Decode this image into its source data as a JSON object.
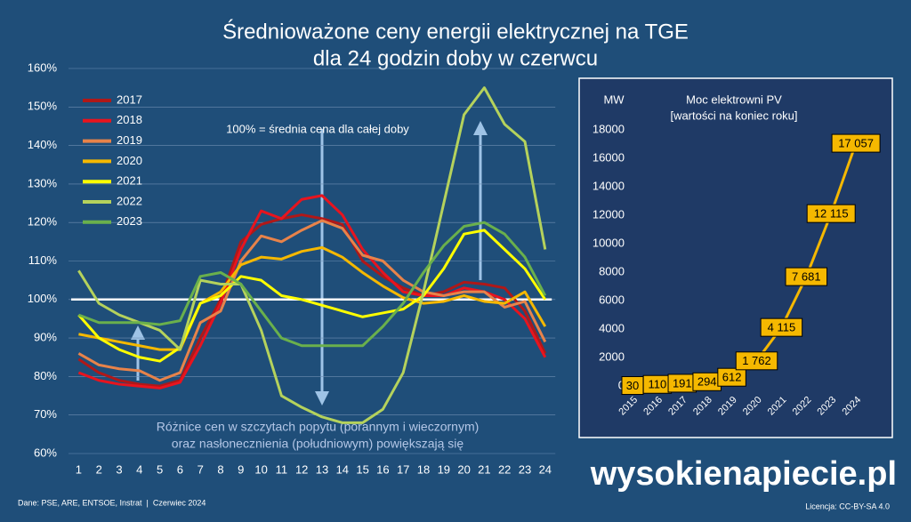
{
  "chart_data": [
    {
      "type": "line",
      "title": "Średnioważone ceny energii elektrycznej na TGE",
      "subtitle": "dla 24 godzin doby w czerwcu",
      "categories": [
        "1",
        "2",
        "3",
        "4",
        "5",
        "6",
        "7",
        "8",
        "9",
        "10",
        "11",
        "12",
        "13",
        "14",
        "15",
        "16",
        "17",
        "18",
        "19",
        "20",
        "21",
        "22",
        "23",
        "24"
      ],
      "series": [
        {
          "name": "2017",
          "color": "#b01818",
          "values": [
            84.5,
            81,
            79,
            78,
            77.5,
            79,
            90,
            100,
            115,
            119.5,
            121,
            122,
            121,
            119.5,
            110,
            106,
            103,
            101,
            102,
            104.5,
            104,
            103,
            97,
            86
          ]
        },
        {
          "name": "2018",
          "color": "#e8141e",
          "values": [
            81,
            79,
            78,
            77.5,
            77,
            78.5,
            88,
            99,
            113,
            123,
            121,
            126,
            127,
            122,
            113,
            107,
            102,
            101,
            101,
            103,
            102,
            100,
            95,
            85
          ]
        },
        {
          "name": "2019",
          "color": "#e8834a",
          "values": [
            86,
            83,
            82,
            81.5,
            79,
            81,
            94,
            97,
            110,
            116.5,
            115,
            118,
            120.5,
            118.5,
            111.5,
            110,
            105,
            102,
            101,
            102,
            102,
            98,
            99.5,
            89
          ]
        },
        {
          "name": "2020",
          "color": "#f5b800",
          "values": [
            91,
            90,
            89,
            88,
            87,
            87,
            99,
            102,
            109,
            111,
            110.5,
            112.5,
            113.5,
            111,
            107,
            103.5,
            100.5,
            99,
            99.5,
            101,
            99.5,
            99,
            102,
            93
          ]
        },
        {
          "name": "2021",
          "color": "#ffff00",
          "values": [
            96,
            90,
            87,
            85,
            84,
            87.5,
            99,
            101,
            106,
            105,
            101,
            100,
            98.5,
            97,
            95.5,
            96.5,
            97.5,
            101,
            108,
            117,
            118,
            113,
            108,
            100
          ]
        },
        {
          "name": "2022",
          "color": "#b5d25c",
          "values": [
            107.5,
            99,
            96,
            94,
            92,
            87,
            105,
            104,
            104,
            92,
            75,
            72,
            69.5,
            68,
            68,
            71.5,
            81,
            102,
            125,
            148,
            155,
            145.5,
            141,
            113
          ]
        },
        {
          "name": "2023",
          "color": "#6ab04c",
          "values": [
            96,
            94,
            94,
            94,
            93.5,
            94.5,
            106,
            107,
            104,
            97,
            90,
            88,
            88,
            88,
            88,
            93,
            99,
            107,
            114,
            119,
            120,
            117,
            111,
            101
          ]
        }
      ],
      "reference_line": 100,
      "ylim": [
        60,
        160
      ],
      "yticks": [
        {
          "value": 60,
          "label": "60%"
        },
        {
          "value": 70,
          "label": "70%"
        },
        {
          "value": 80,
          "label": "80%"
        },
        {
          "value": 90,
          "label": "90%"
        },
        {
          "value": 100,
          "label": "100%"
        },
        {
          "value": 110,
          "label": "110%"
        },
        {
          "value": 120,
          "label": "120%"
        },
        {
          "value": 130,
          "label": "130%"
        },
        {
          "value": 140,
          "label": "140%"
        },
        {
          "value": 150,
          "label": "150%"
        },
        {
          "value": 160,
          "label": "160%"
        }
      ],
      "grid": true,
      "annotations": [
        "100% = średnia cena dla całej doby",
        "Różnice cen w szczytach popytu (porannym i wieczornym)",
        "oraz nasłonecznienia (południowym) powiększają się"
      ]
    },
    {
      "type": "line",
      "title": "Moc elektrowni PV",
      "subtitle": "[wartości na koniec roku]",
      "y_label": "MW",
      "categories": [
        "2015",
        "2016",
        "2017",
        "2018",
        "2019",
        "2020",
        "2021",
        "2022",
        "2023",
        "2024"
      ],
      "values": [
        30,
        110,
        191,
        294,
        612,
        1762,
        4115,
        7681,
        12115,
        17057
      ],
      "value_labels": [
        "30",
        "110",
        "191",
        "294",
        "612",
        "1 762",
        "4 115",
        "7 681",
        "12 115",
        "17 057"
      ],
      "color": "#f5b800",
      "ylim": [
        0,
        18000
      ],
      "yticks": [
        0,
        2000,
        4000,
        6000,
        8000,
        10000,
        12000,
        14000,
        16000,
        18000
      ]
    }
  ],
  "source": "Dane: PSE, ARE, ENTSOE, Instrat  |  Czerwiec 2024",
  "license": "Licencja: CC-BY-SA 4.0",
  "logo": "wysokienapiecie.pl"
}
